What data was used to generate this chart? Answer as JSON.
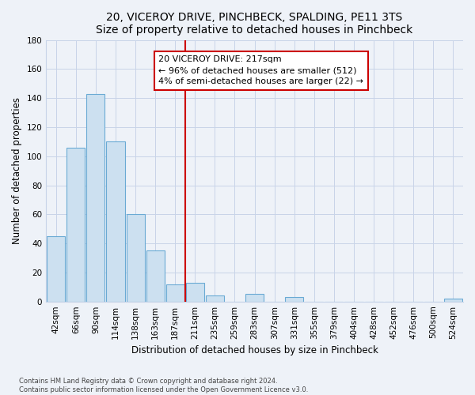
{
  "title": "20, VICEROY DRIVE, PINCHBECK, SPALDING, PE11 3TS",
  "subtitle": "Size of property relative to detached houses in Pinchbeck",
  "xlabel": "Distribution of detached houses by size in Pinchbeck",
  "ylabel": "Number of detached properties",
  "bin_labels": [
    "42sqm",
    "66sqm",
    "90sqm",
    "114sqm",
    "138sqm",
    "163sqm",
    "187sqm",
    "211sqm",
    "235sqm",
    "259sqm",
    "283sqm",
    "307sqm",
    "331sqm",
    "355sqm",
    "379sqm",
    "404sqm",
    "428sqm",
    "452sqm",
    "476sqm",
    "500sqm",
    "524sqm"
  ],
  "bar_heights": [
    45,
    106,
    143,
    110,
    60,
    35,
    12,
    13,
    4,
    0,
    5,
    0,
    3,
    0,
    0,
    0,
    0,
    0,
    0,
    0,
    2
  ],
  "bar_color": "#cce0f0",
  "bar_edge_color": "#6aaad4",
  "vline_x_index": 7,
  "vline_color": "#cc0000",
  "annotation_title": "20 VICEROY DRIVE: 217sqm",
  "annotation_line1": "← 96% of detached houses are smaller (512)",
  "annotation_line2": "4% of semi-detached houses are larger (22) →",
  "annotation_box_facecolor": "#ffffff",
  "annotation_box_edge_color": "#cc0000",
  "ylim": [
    0,
    180
  ],
  "yticks": [
    0,
    20,
    40,
    60,
    80,
    100,
    120,
    140,
    160,
    180
  ],
  "footer_line1": "Contains HM Land Registry data © Crown copyright and database right 2024.",
  "footer_line2": "Contains public sector information licensed under the Open Government Licence v3.0.",
  "background_color": "#eef2f8",
  "grid_color": "#c8d4e8",
  "title_fontsize": 10,
  "subtitle_fontsize": 9,
  "axis_label_fontsize": 8.5,
  "tick_fontsize": 7.5,
  "annotation_fontsize": 8,
  "footer_fontsize": 6
}
